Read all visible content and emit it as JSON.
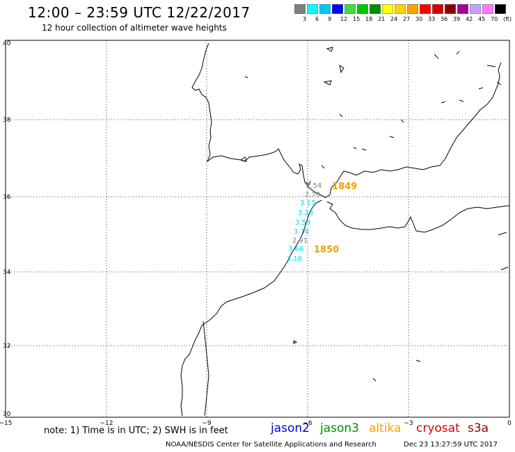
{
  "header": {
    "title": "12:00 – 23:59 UTC 12/22/2017",
    "subtitle": "12 hour collection of altimeter wave heights"
  },
  "legend": {
    "colors": [
      "#808080",
      "#00ffff",
      "#00c8ff",
      "#0000ff",
      "#3cdc3c",
      "#00c800",
      "#008c00",
      "#ffff00",
      "#ffd200",
      "#ffa000",
      "#ff0000",
      "#d20000",
      "#8c0000",
      "#a000a0",
      "#c8a0ff",
      "#ff78ff",
      "#000000"
    ],
    "labels": [
      "3",
      "6",
      "9",
      "12",
      "15",
      "18",
      "21",
      "24",
      "27",
      "30",
      "33",
      "36",
      "39",
      "42",
      "45",
      "70",
      "(ft)"
    ]
  },
  "map": {
    "lat_labels": [
      "40",
      "38",
      "36",
      "34",
      "32",
      "30"
    ],
    "lon_labels": [
      "−15",
      "−12",
      "−9",
      "−6",
      "−3",
      "0"
    ],
    "observations": [
      {
        "text": "2.54",
        "color": "#808080"
      },
      {
        "text": "2.70",
        "color": "#808080"
      },
      {
        "text": "3.17",
        "color": "#00d8e8"
      },
      {
        "text": "3.23",
        "color": "#00d8e8"
      },
      {
        "text": "3.59",
        "color": "#00d8e8"
      },
      {
        "text": "3.76",
        "color": "#00d8e8"
      },
      {
        "text": "2.91",
        "color": "#808080"
      },
      {
        "text": "3.66",
        "color": "#00d8e8"
      },
      {
        "text": "3.16",
        "color": "#00d8e8"
      }
    ],
    "pass_times": [
      {
        "text": "1849",
        "color": "#f0a000"
      },
      {
        "text": "1850",
        "color": "#f0a000"
      }
    ]
  },
  "footer": {
    "note": "note: 1) Time is in UTC; 2) SWH is in feet",
    "satellites": [
      {
        "name": "jason2",
        "color": "#0000d0"
      },
      {
        "name": "jason3",
        "color": "#008c00"
      },
      {
        "name": "altika",
        "color": "#ffa000"
      },
      {
        "name": "cryosat",
        "color": "#d00000"
      },
      {
        "name": "s3a",
        "color": "#8c0000"
      }
    ],
    "credit": "NOAA/NESDIS Center for Satellite Applications and Research",
    "timestamp": "Dec 23 13:27:59 UTC 2017"
  }
}
